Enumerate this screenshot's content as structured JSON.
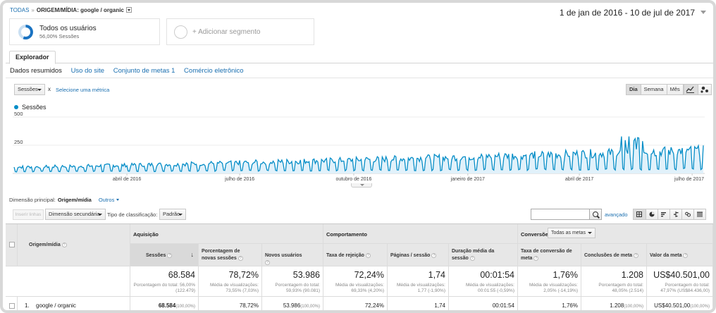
{
  "breadcrumb": {
    "root": "TODAS",
    "separator": "»",
    "current": "ORIGEM/MÍDIA: google / organic"
  },
  "date_range": "1 de jan de 2016 - 10 de jul de 2017",
  "segments": [
    {
      "title": "Todos os usuários",
      "subtitle": "56,00% Sessões",
      "share": 0.56
    },
    {
      "title": "+ Adicionar segmento"
    }
  ],
  "tabs": {
    "explorer": "Explorador"
  },
  "subtabs": [
    "Dados resumidos",
    "Uso do site",
    "Conjunto de metas 1",
    "Comércio eletrônico"
  ],
  "metric_selector": {
    "primary": "Sessões",
    "vs": "x",
    "secondary_link": "Selecione uma métrica"
  },
  "granularity": [
    "Dia",
    "Semana",
    "Mês"
  ],
  "chart_data": {
    "type": "area",
    "series": [
      {
        "name": "Sessões",
        "color": "#058dc7"
      }
    ],
    "y_ticks": [
      "500",
      "250"
    ],
    "ylim": [
      0,
      500
    ],
    "x_tick_labels": [
      "abril de 2016",
      "julho de 2016",
      "outubro de 2016",
      "janeiro de 2017",
      "abril de 2017",
      "julho de 2017"
    ],
    "x_start": "2016-01-01",
    "x_end": "2017-07-10",
    "grid": true,
    "trend": {
      "start_weekday": 55,
      "start_weekend": 15,
      "end_weekday": 200,
      "end_weekend": 40,
      "peak": 330
    }
  },
  "dimension": {
    "label": "Dimensão principal:",
    "current": "Origem/mídia",
    "other": "Outros"
  },
  "controls": {
    "plot_rows": "Inserir linhas",
    "secondary_dimension": "Dimensão secundária",
    "sort_label": "Tipo de classificação:",
    "sort_value": "Padrão",
    "search_placeholder": "",
    "advanced": "avançado"
  },
  "table": {
    "dim_header": "Origem/mídia",
    "groups": {
      "acquisition": "Aquisição",
      "behavior": "Comportamento",
      "conversions": "Conversões",
      "conversions_select": "Todas as metas"
    },
    "columns": [
      "Sessões",
      "Porcentagem de novas sessões",
      "Novos usuários",
      "Taxa de rejeição",
      "Páginas / sessão",
      "Duração média da sessão",
      "Taxa de conversão de meta",
      "Conclusões de meta",
      "Valor da meta"
    ],
    "totals": [
      {
        "value": "68.584",
        "sub": "Porcentagem do total: 56,00% (122.479)"
      },
      {
        "value": "78,72%",
        "sub": "Média de visualizações: 73,55% (7,03%)"
      },
      {
        "value": "53.986",
        "sub": "Porcentagem do total: 59,93% (90.081)"
      },
      {
        "value": "72,24%",
        "sub": "Média de visualizações: 69,33% (4,20%)"
      },
      {
        "value": "1,74",
        "sub": "Média de visualizações: 1,77 (-1,90%)"
      },
      {
        "value": "00:01:54",
        "sub": "Média de visualizações: 00:01:55 (-0,59%)"
      },
      {
        "value": "1,76%",
        "sub": "Média de visualizações: 2,05% (-14,19%)"
      },
      {
        "value": "1.208",
        "sub": "Porcentagem do total: 48,05% (2.514)"
      },
      {
        "value": "US$40.501,00",
        "sub": "Porcentagem do total: 47,97% (US$84.436,00)"
      }
    ],
    "rows": [
      {
        "index": "1.",
        "name": "google / organic",
        "cells": [
          {
            "v": "68.584",
            "p": "(100,00%)"
          },
          {
            "v": "78,72%",
            "p": ""
          },
          {
            "v": "53.986",
            "p": "(100,00%)"
          },
          {
            "v": "72,24%",
            "p": ""
          },
          {
            "v": "1,74",
            "p": ""
          },
          {
            "v": "00:01:54",
            "p": ""
          },
          {
            "v": "1,76%",
            "p": ""
          },
          {
            "v": "1.208",
            "p": "(100,00%)"
          },
          {
            "v": "US$40.501,00",
            "p": "(100,00%)"
          }
        ]
      }
    ]
  }
}
